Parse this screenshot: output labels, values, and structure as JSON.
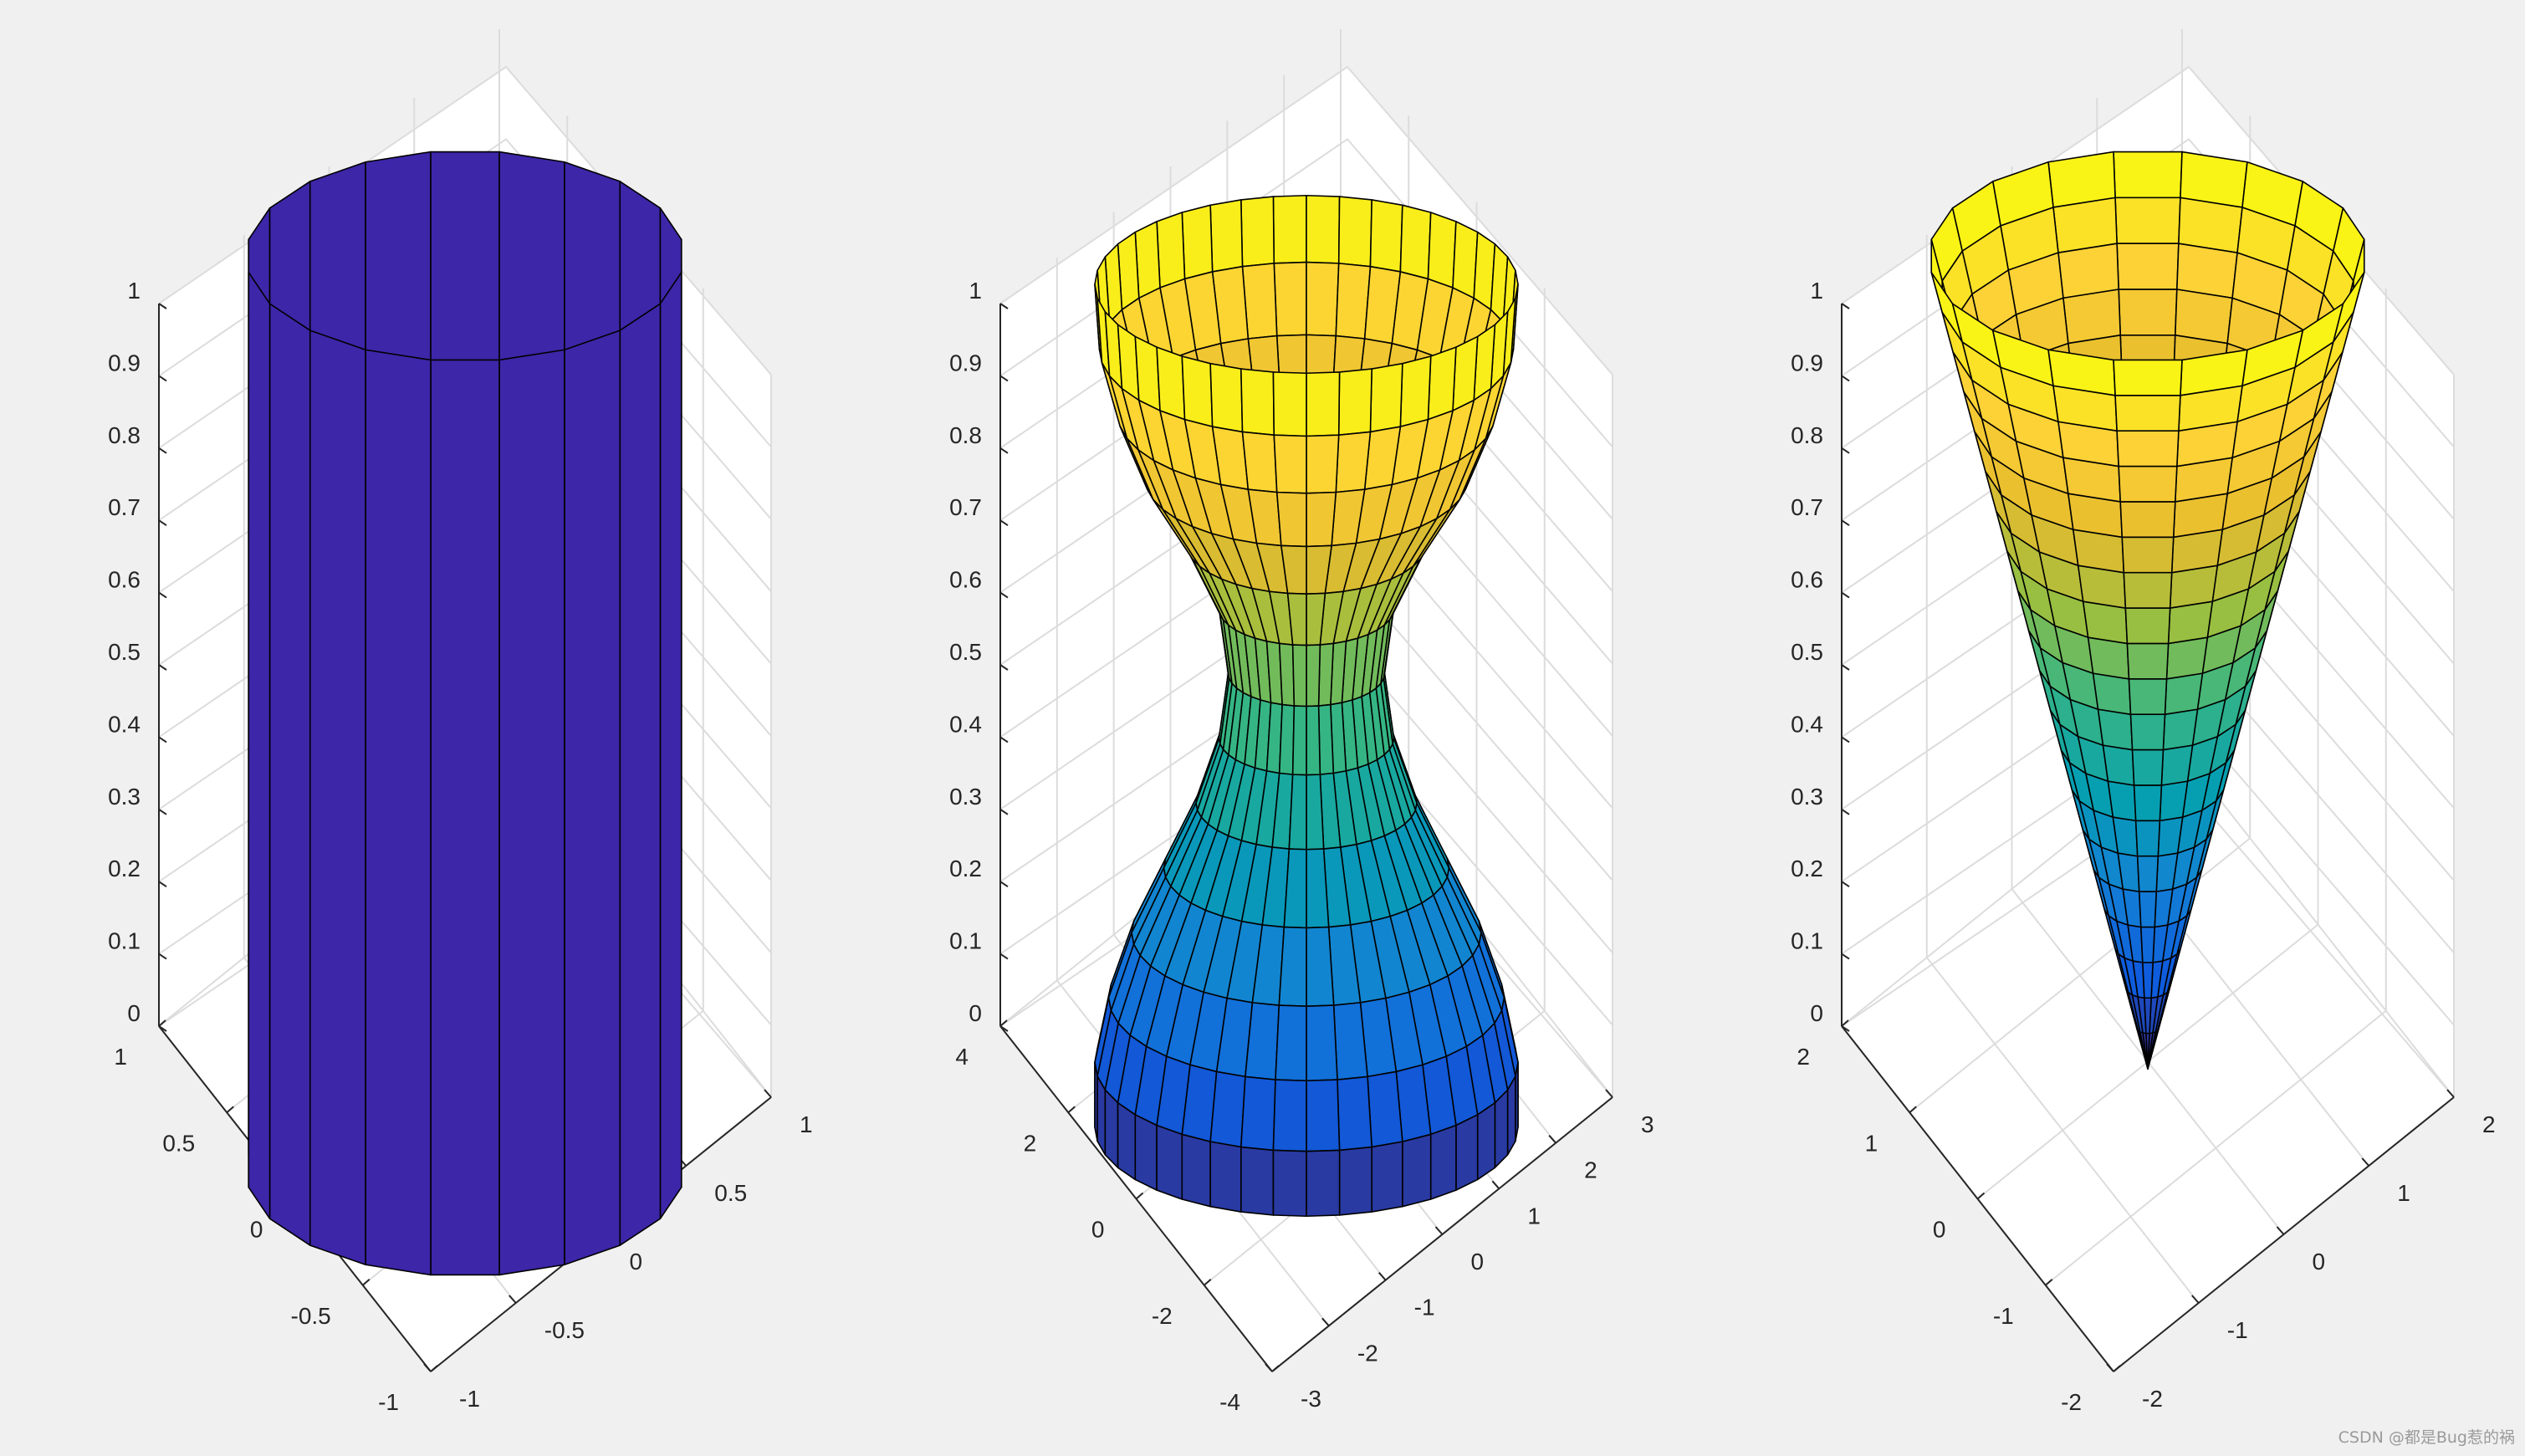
{
  "figure": {
    "background": "#f0f0f0"
  },
  "watermark": "CSDN @都是Bug惹的祸",
  "chart_data": [
    {
      "type": "surface",
      "name": "cylinder",
      "shape": "cylinder",
      "radius": 1,
      "facets_around": 20,
      "color": "#3d26a8",
      "zlim": [
        0,
        1
      ],
      "z_ticks": [
        "0",
        "0.1",
        "0.2",
        "0.3",
        "0.4",
        "0.5",
        "0.6",
        "0.7",
        "0.8",
        "0.9",
        "1"
      ],
      "x_ticks": [
        "-1",
        "-0.5",
        "0",
        "0.5",
        "1"
      ],
      "y_ticks": [
        "-1",
        "-0.5",
        "0",
        "0.5",
        "1"
      ]
    },
    {
      "type": "surface",
      "name": "hourglass",
      "shape": "profile",
      "profile": [
        2.3,
        2.3,
        2.15,
        1.9,
        1.55,
        1.2,
        0.95,
        0.85,
        0.95,
        1.3,
        1.75,
        2.05,
        2.25,
        2.3
      ],
      "facets_around": 40,
      "colormap": "parula",
      "zlim": [
        0,
        1
      ],
      "z_ticks": [
        "0",
        "0.1",
        "0.2",
        "0.3",
        "0.4",
        "0.5",
        "0.6",
        "0.7",
        "0.8",
        "0.9",
        "1"
      ],
      "x_ticks": [
        "-3",
        "-2",
        "-1",
        "0",
        "1",
        "2",
        "3"
      ],
      "y_ticks": [
        "-4",
        "-2",
        "0",
        "2",
        "4"
      ]
    },
    {
      "type": "surface",
      "name": "cone",
      "shape": "cone",
      "radius_top": 2,
      "rings": 20,
      "facets_around": 20,
      "colormap": "parula",
      "zlim": [
        0,
        1
      ],
      "z_ticks": [
        "0",
        "0.1",
        "0.2",
        "0.3",
        "0.4",
        "0.5",
        "0.6",
        "0.7",
        "0.8",
        "0.9",
        "1"
      ],
      "x_ticks": [
        "-2",
        "-1",
        "0",
        "1",
        "2"
      ],
      "y_ticks": [
        "-2",
        "-1",
        "0",
        "1",
        "2"
      ]
    }
  ]
}
